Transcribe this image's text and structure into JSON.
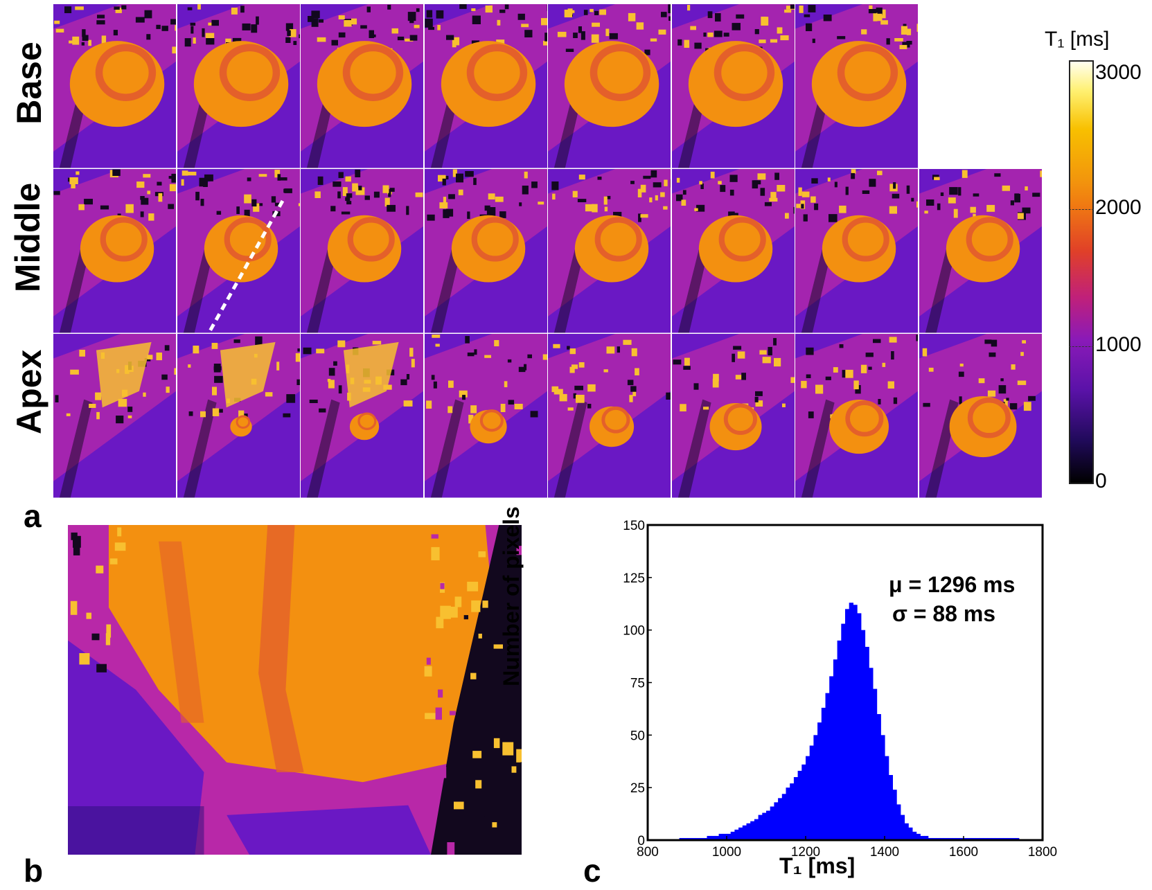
{
  "panel_a": {
    "row_labels": [
      "Base",
      "Middle",
      "Apex"
    ],
    "colorbar": {
      "title": "T₁ [ms]",
      "ticks": [
        "3000",
        "2000",
        "1000",
        "0"
      ],
      "range": [
        0,
        3000
      ]
    }
  },
  "panel_letters": {
    "a": "a",
    "b": "b",
    "c": "c"
  },
  "colors": {
    "blood": "#f39010",
    "myocardium": "#e4602a",
    "tissue": "#b828a8",
    "background": "#6a18c4",
    "noise_hot": "#f8c030",
    "noise_dark": "#12081e",
    "histogram": "#0000ff"
  },
  "chart_data": {
    "type": "bar",
    "title": "",
    "xlabel": "T₁ [ms]",
    "ylabel": "Number of pixels",
    "xlim": [
      800,
      1800
    ],
    "ylim": [
      0,
      150
    ],
    "xticks": [
      "800",
      "1000",
      "1200",
      "1400",
      "1600",
      "1800"
    ],
    "yticks": [
      "0",
      "25",
      "50",
      "75",
      "100",
      "125",
      "150"
    ],
    "bin_start": 880,
    "bin_width": 10,
    "values": [
      1,
      1,
      1,
      1,
      1,
      1,
      1,
      2,
      2,
      2,
      3,
      3,
      3,
      4,
      5,
      6,
      7,
      8,
      9,
      10,
      12,
      13,
      14,
      16,
      18,
      20,
      22,
      25,
      27,
      30,
      33,
      36,
      40,
      45,
      50,
      56,
      63,
      70,
      78,
      86,
      95,
      103,
      110,
      113,
      112,
      108,
      100,
      92,
      82,
      72,
      60,
      50,
      40,
      31,
      24,
      17,
      12,
      8,
      6,
      4,
      3,
      2,
      2,
      1,
      1,
      1,
      1,
      1,
      1,
      1,
      1,
      1,
      1,
      1,
      1,
      1,
      1,
      1,
      1,
      1,
      1,
      1,
      1,
      1,
      1,
      1
    ],
    "annotations": [
      "μ = 1296 ms",
      "σ = 88 ms"
    ]
  }
}
